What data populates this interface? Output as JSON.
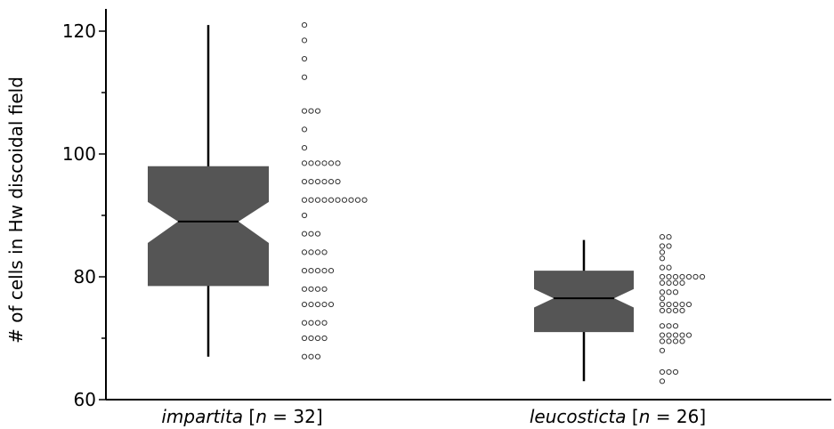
{
  "chart_data": {
    "type": "boxplot",
    "ylabel": "# of cells in Hw discoidal field",
    "ylim": [
      60,
      124
    ],
    "yticks": [
      60,
      80,
      100,
      120
    ],
    "grid": false,
    "groups": [
      {
        "name_italic": "impartita",
        "n_prefix": " [",
        "n_var": "n",
        "n_suffix": " = 32]",
        "whisker_low": 67,
        "q1": 78.5,
        "notch_low": 85.5,
        "median": 89,
        "notch_high": 92.2,
        "q3": 98,
        "whisker_high": 121,
        "points": [
          {
            "y": 121,
            "count": 1
          },
          {
            "y": 118.5,
            "count": 1
          },
          {
            "y": 115.5,
            "count": 1
          },
          {
            "y": 112.5,
            "count": 1
          },
          {
            "y": 107,
            "count": 3
          },
          {
            "y": 104,
            "count": 1
          },
          {
            "y": 101,
            "count": 1
          },
          {
            "y": 98.5,
            "count": 6
          },
          {
            "y": 95.5,
            "count": 6
          },
          {
            "y": 92.5,
            "count": 10
          },
          {
            "y": 90,
            "count": 1
          },
          {
            "y": 87,
            "count": 3
          },
          {
            "y": 84,
            "count": 4
          },
          {
            "y": 81,
            "count": 5
          },
          {
            "y": 78,
            "count": 4
          },
          {
            "y": 75.5,
            "count": 5
          },
          {
            "y": 72.5,
            "count": 4
          },
          {
            "y": 70,
            "count": 4
          },
          {
            "y": 67,
            "count": 3
          }
        ]
      },
      {
        "name_italic": "leucosticta",
        "n_prefix": " [",
        "n_var": "n",
        "n_suffix": " = 26]",
        "whisker_low": 63,
        "q1": 71,
        "notch_low": 75,
        "median": 76.5,
        "notch_high": 78,
        "q3": 81,
        "whisker_high": 86,
        "points": [
          {
            "y": 86.5,
            "count": 2
          },
          {
            "y": 85,
            "count": 2
          },
          {
            "y": 84,
            "count": 1
          },
          {
            "y": 83,
            "count": 1
          },
          {
            "y": 81.5,
            "count": 2
          },
          {
            "y": 80,
            "count": 7
          },
          {
            "y": 79,
            "count": 4
          },
          {
            "y": 77.5,
            "count": 3
          },
          {
            "y": 76.5,
            "count": 1
          },
          {
            "y": 75.5,
            "count": 5
          },
          {
            "y": 74.5,
            "count": 4
          },
          {
            "y": 72,
            "count": 3
          },
          {
            "y": 70.5,
            "count": 5
          },
          {
            "y": 69.5,
            "count": 4
          },
          {
            "y": 68,
            "count": 1
          },
          {
            "y": 64.5,
            "count": 3
          },
          {
            "y": 63,
            "count": 1
          }
        ]
      }
    ]
  }
}
